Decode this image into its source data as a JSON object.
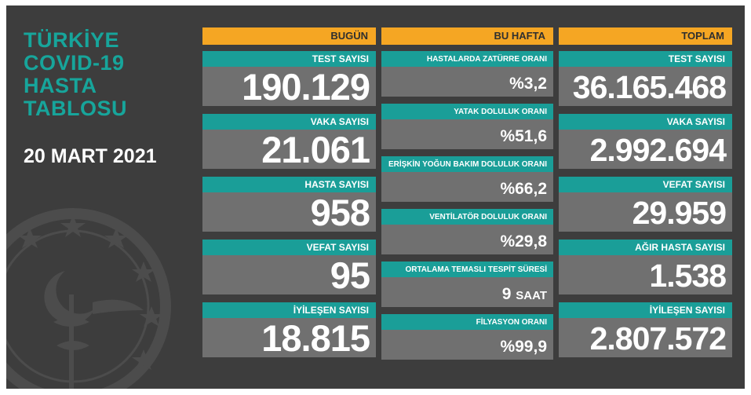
{
  "title_lines": [
    "TÜRKİYE",
    "COVID-19",
    "HASTA",
    "TABLOSU"
  ],
  "date": "20 MART 2021",
  "colors": {
    "background": "#3d3d3d",
    "header": "#f5a623",
    "label": "#1a9e98",
    "value_box": "#707070",
    "title": "#17a59b"
  },
  "emblem_icon": "ministry-of-health-star-crescent-caduceus",
  "today": {
    "header": "BUGÜN",
    "items": [
      {
        "label": "TEST SAYISI",
        "value": "190.129"
      },
      {
        "label": "VAKA SAYISI",
        "value": "21.061"
      },
      {
        "label": "HASTA SAYISI",
        "value": "958"
      },
      {
        "label": "VEFAT SAYISI",
        "value": "95"
      },
      {
        "label": "İYİLEŞEN SAYISI",
        "value": "18.815"
      }
    ]
  },
  "week": {
    "header": "BU HAFTA",
    "items": [
      {
        "label": "HASTALARDA ZATÜRRE ORANI",
        "value": "%3,2"
      },
      {
        "label": "YATAK DOLULUK ORANI",
        "value": "%51,6"
      },
      {
        "label": "ERİŞKİN YOĞUN BAKIM DOLULUK ORANI",
        "value": "%66,2"
      },
      {
        "label": "VENTİLATÖR DOLULUK ORANI",
        "value": "%29,8"
      },
      {
        "label": "ORTALAMA TEMASLI TESPİT SÜRESİ",
        "value": "9",
        "unit": "SAAT"
      },
      {
        "label": "FİLYASYON ORANI",
        "value": "%99,9"
      }
    ]
  },
  "total": {
    "header": "TOPLAM",
    "items": [
      {
        "label": "TEST SAYISI",
        "value": "36.165.468"
      },
      {
        "label": "VAKA SAYISI",
        "value": "2.992.694"
      },
      {
        "label": "VEFAT SAYISI",
        "value": "29.959"
      },
      {
        "label": "AĞIR HASTA SAYISI",
        "value": "1.538"
      },
      {
        "label": "İYİLEŞEN SAYISI",
        "value": "2.807.572"
      }
    ]
  }
}
